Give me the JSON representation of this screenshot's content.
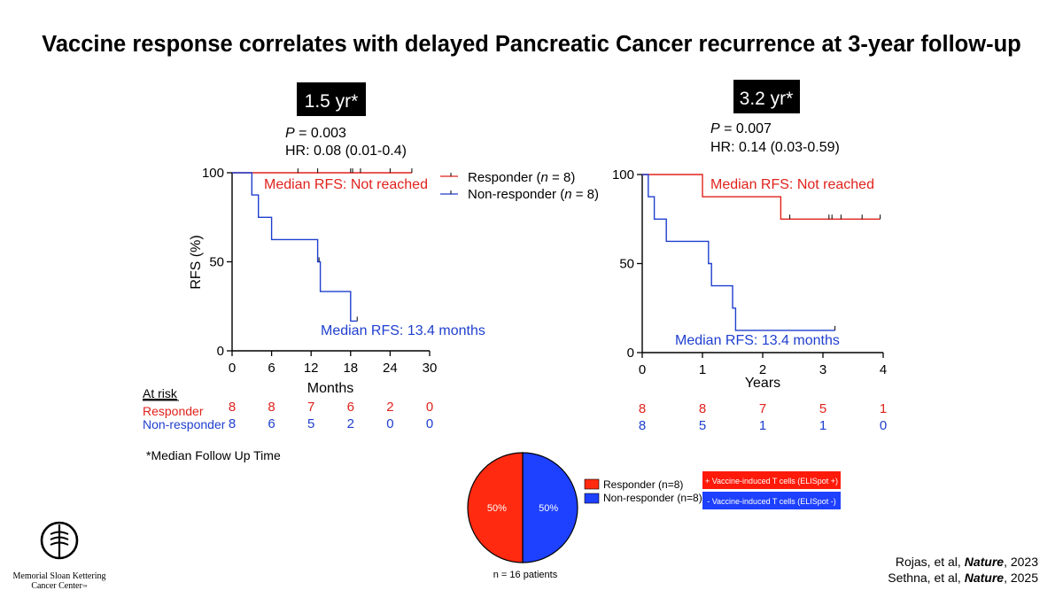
{
  "title": "Vaccine response correlates with delayed Pancreatic Cancer recurrence at 3-year follow-up",
  "colors": {
    "responder": "#e0221c",
    "non_responder": "#1f3fcf",
    "pie_responder": "#ff2a10",
    "pie_non_responder": "#1e40ff"
  },
  "legend": {
    "responder_pre": "Responder (",
    "responder_n": "n",
    "responder_post": " = 8)",
    "non_responder_pre": "Non-responder (",
    "non_responder_n": "n",
    "non_responder_post": " = 8)"
  },
  "footnote": "*Median Follow Up Time",
  "at_risk": {
    "header": "At risk",
    "responder_label": "Responder",
    "non_responder_label": "Non-responder"
  },
  "pie_legend": {
    "responder": "Responder (n=8)",
    "non_responder": "Non-responder (n=8)",
    "pos_box": "+ Vaccine-induced T cells (ELISpot +)",
    "neg_box": "- Vaccine-induced T cells (ELISpot -)",
    "caption": "n = 16 patients"
  },
  "logo": {
    "line1": "Memorial Sloan Kettering",
    "line2": "Cancer Center",
    "tm": "™"
  },
  "citations": [
    {
      "pre": "Rojas, et al, ",
      "journal": "Nature",
      "post": ", 2023"
    },
    {
      "pre": "Sethna, et al, ",
      "journal": "Nature",
      "post": ", 2025"
    }
  ],
  "chart_data": [
    {
      "type": "line",
      "subtype": "kaplan-meier",
      "badge": "1.5 yr*",
      "p_label": "P",
      "p_eq": " = ",
      "p_value": "0.003",
      "hr": "HR: 0.08 (0.01-0.4)",
      "xlabel": "Months",
      "ylabel": "RFS (%)",
      "xlim": [
        0,
        30
      ],
      "ylim": [
        0,
        100
      ],
      "x_ticks": [
        0,
        6,
        12,
        18,
        24,
        30
      ],
      "y_ticks": [
        0,
        50,
        100
      ],
      "responder_annotation": "Median RFS: Not reached",
      "non_responder_annotation": "Median RFS: 13.4 months",
      "series": [
        {
          "name": "Responder",
          "steps": [
            [
              0,
              100
            ],
            [
              27.3,
              100
            ]
          ],
          "censored": [
            10,
            13,
            18,
            18.3,
            19.5,
            24,
            27.3
          ]
        },
        {
          "name": "Non-responder",
          "steps": [
            [
              0,
              100
            ],
            [
              3,
              100
            ],
            [
              3,
              87.5
            ],
            [
              4,
              87.5
            ],
            [
              4,
              75
            ],
            [
              6,
              75
            ],
            [
              6,
              62.5
            ],
            [
              13,
              62.5
            ],
            [
              13,
              50
            ],
            [
              13.4,
              50
            ],
            [
              13.4,
              33.3
            ],
            [
              18,
              33.3
            ],
            [
              18,
              16.7
            ],
            [
              19,
              16.7
            ]
          ],
          "censored": [
            13.2,
            19
          ]
        }
      ],
      "at_risk": {
        "x": [
          0,
          6,
          12,
          18,
          24,
          30
        ],
        "responder": [
          8,
          8,
          7,
          6,
          2,
          0
        ],
        "non_responder": [
          8,
          6,
          5,
          2,
          0,
          0
        ]
      }
    },
    {
      "type": "line",
      "subtype": "kaplan-meier",
      "badge": "3.2 yr*",
      "p_label": "P",
      "p_eq": " = ",
      "p_value": "0.007",
      "hr": "HR: 0.14 (0.03-0.59)",
      "xlabel": "Years",
      "ylabel": "",
      "xlim": [
        0,
        4
      ],
      "ylim": [
        0,
        100
      ],
      "x_ticks": [
        0,
        1,
        2,
        3,
        4
      ],
      "y_ticks": [
        0,
        50,
        100
      ],
      "responder_annotation": "Median RFS: Not reached",
      "non_responder_annotation": "Median RFS: 13.4 months",
      "series": [
        {
          "name": "Responder",
          "steps": [
            [
              0,
              100
            ],
            [
              1,
              100
            ],
            [
              1,
              87.5
            ],
            [
              2.3,
              87.5
            ],
            [
              2.3,
              75
            ],
            [
              3.95,
              75
            ]
          ],
          "censored": [
            2.45,
            3.1,
            3.15,
            3.3,
            3.65,
            3.95
          ]
        },
        {
          "name": "Non-responder",
          "steps": [
            [
              0,
              100
            ],
            [
              0.1,
              100
            ],
            [
              0.1,
              87.5
            ],
            [
              0.2,
              87.5
            ],
            [
              0.2,
              75
            ],
            [
              0.4,
              75
            ],
            [
              0.4,
              62.5
            ],
            [
              1.1,
              62.5
            ],
            [
              1.1,
              50
            ],
            [
              1.15,
              50
            ],
            [
              1.15,
              37.5
            ],
            [
              1.5,
              37.5
            ],
            [
              1.5,
              25
            ],
            [
              1.55,
              25
            ],
            [
              1.55,
              12.5
            ],
            [
              3.2,
              12.5
            ]
          ],
          "censored": [
            3.2
          ]
        }
      ],
      "at_risk": {
        "x": [
          0,
          1,
          2,
          3,
          4
        ],
        "responder": [
          8,
          8,
          7,
          5,
          1
        ],
        "non_responder": [
          8,
          5,
          1,
          1,
          0
        ]
      }
    },
    {
      "type": "pie",
      "labels": [
        "Responder",
        "Non-responder"
      ],
      "values": [
        50,
        50
      ],
      "value_labels": [
        "50%",
        "50%"
      ]
    }
  ]
}
